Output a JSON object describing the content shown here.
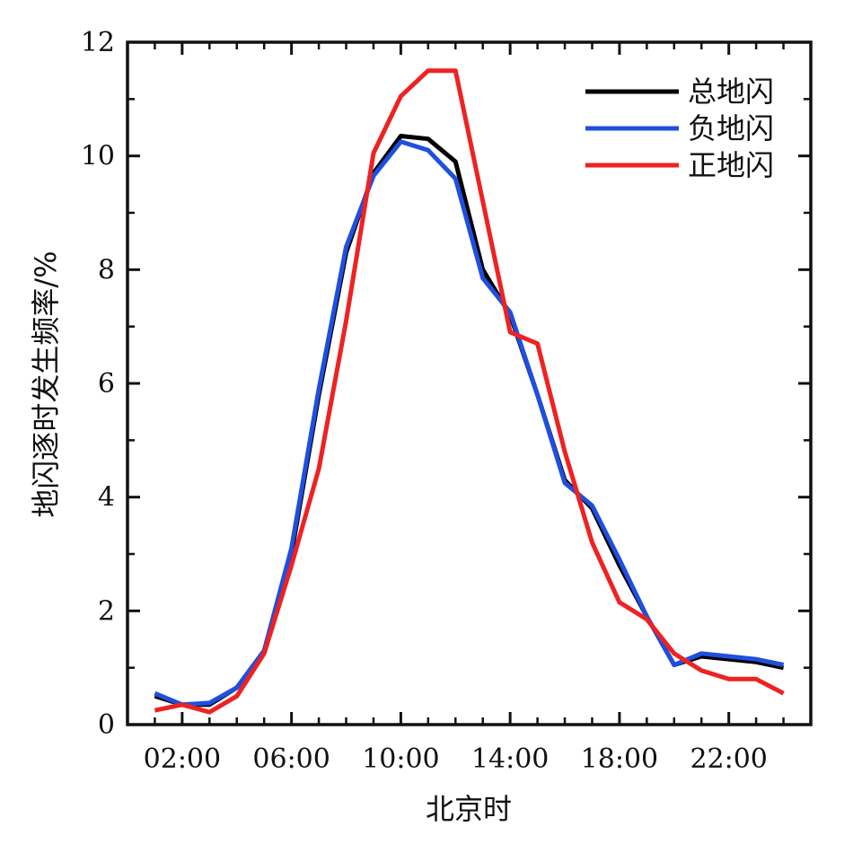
{
  "chart_data": {
    "type": "line",
    "xlabel": "北京时",
    "ylabel": "地闪逐时发生频率/%",
    "ylim": [
      0,
      12
    ],
    "xlim": [
      0,
      25
    ],
    "x": [
      1,
      2,
      3,
      4,
      5,
      6,
      7,
      8,
      9,
      10,
      11,
      12,
      13,
      14,
      15,
      16,
      17,
      18,
      19,
      20,
      21,
      22,
      23,
      24
    ],
    "x_ticks": [
      2,
      6,
      10,
      14,
      18,
      22
    ],
    "x_tick_labels": [
      "02:00",
      "06:00",
      "10:00",
      "14:00",
      "18:00",
      "22:00"
    ],
    "y_ticks": [
      0,
      2,
      4,
      6,
      8,
      10,
      12
    ],
    "y_tick_labels": [
      "0",
      "2",
      "4",
      "6",
      "8",
      "10",
      "12"
    ],
    "legend_position": "top-right",
    "grid": false,
    "series": [
      {
        "name": "总地闪",
        "color": "#000000",
        "values": [
          0.5,
          0.35,
          0.35,
          0.65,
          1.3,
          3.0,
          5.8,
          8.3,
          9.7,
          10.35,
          10.3,
          9.9,
          8.0,
          7.2,
          5.8,
          4.3,
          3.8,
          2.8,
          1.9,
          1.05,
          1.2,
          1.15,
          1.1,
          1.0
        ]
      },
      {
        "name": "负地闪",
        "color": "#1f4fe0",
        "values": [
          0.55,
          0.35,
          0.38,
          0.65,
          1.3,
          3.1,
          5.9,
          8.4,
          9.65,
          10.25,
          10.1,
          9.6,
          7.85,
          7.25,
          5.8,
          4.25,
          3.85,
          2.9,
          1.9,
          1.05,
          1.25,
          1.2,
          1.15,
          1.05
        ]
      },
      {
        "name": "正地闪",
        "color": "#ee2222",
        "values": [
          0.25,
          0.35,
          0.22,
          0.5,
          1.25,
          2.8,
          4.5,
          7.1,
          10.05,
          11.05,
          11.5,
          11.5,
          9.2,
          6.9,
          6.7,
          4.8,
          3.2,
          2.15,
          1.85,
          1.25,
          0.95,
          0.8,
          0.8,
          0.55
        ]
      }
    ]
  }
}
